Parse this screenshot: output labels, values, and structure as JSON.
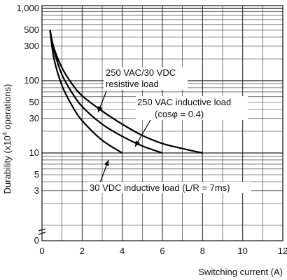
{
  "chart_data": {
    "type": "line",
    "title": "",
    "xlabel": "Switching current (A)",
    "ylabel_main": "Durability (x10",
    "ylabel_sup": "4",
    "ylabel_tail": " operations)",
    "xlim": [
      0,
      12
    ],
    "x_ticks": [
      "0",
      "2",
      "4",
      "6",
      "8",
      "10",
      "12"
    ],
    "y_scale": "log",
    "ylim": [
      1,
      1000
    ],
    "y_ticks": [
      {
        "value": 1000,
        "label": "1,000"
      },
      {
        "value": 500,
        "label": "500"
      },
      {
        "value": 300,
        "label": "300"
      },
      {
        "value": 100,
        "label": "100"
      },
      {
        "value": 50,
        "label": "50"
      },
      {
        "value": 30,
        "label": "30"
      },
      {
        "value": 10,
        "label": "10"
      },
      {
        "value": 5,
        "label": "5"
      },
      {
        "value": 3,
        "label": "3"
      }
    ],
    "y_origin_label": "0",
    "axis_break": true,
    "grid": true,
    "series": [
      {
        "points": [
          [
            0.4,
            500
          ],
          [
            0.6,
            280
          ],
          [
            1.0,
            150
          ],
          [
            1.5,
            90
          ],
          [
            2.0,
            62
          ],
          [
            3.0,
            38
          ],
          [
            4.0,
            25
          ],
          [
            5.0,
            17.5
          ],
          [
            6.0,
            13.5
          ],
          [
            7.0,
            11.5
          ],
          [
            8.0,
            10
          ]
        ]
      },
      {
        "points": [
          [
            0.4,
            500
          ],
          [
            0.6,
            260
          ],
          [
            1.0,
            120
          ],
          [
            1.5,
            68
          ],
          [
            2.0,
            44
          ],
          [
            3.0,
            25
          ],
          [
            4.0,
            17
          ],
          [
            5.0,
            12.5
          ],
          [
            6.0,
            10
          ]
        ]
      },
      {
        "points": [
          [
            0.4,
            500
          ],
          [
            0.6,
            200
          ],
          [
            1.0,
            85
          ],
          [
            1.5,
            45
          ],
          [
            2.0,
            28
          ],
          [
            3.0,
            15
          ],
          [
            4.0,
            10
          ]
        ]
      }
    ],
    "annotations": {
      "resistive_line1": "250 VAC/30 VDC",
      "resistive_line2": "resistive load",
      "vac_inductive_line1": "250 VAC inductive load",
      "vac_inductive_line2": "(cosφ = 0.4)",
      "vdc_inductive": "30 VDC inductive load (L/R = 7ms)"
    }
  }
}
